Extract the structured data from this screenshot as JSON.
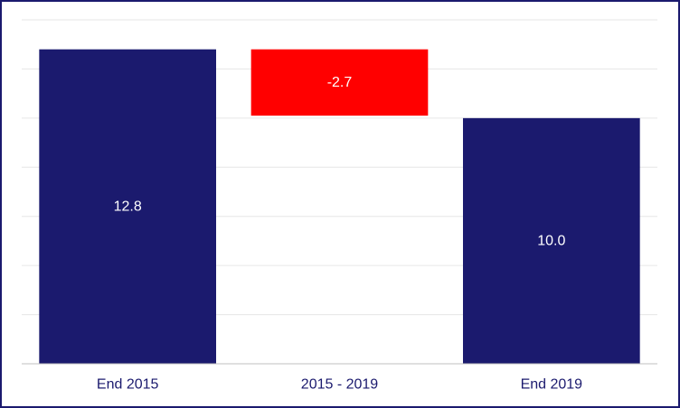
{
  "chart_data": {
    "type": "bar",
    "subtype": "waterfall",
    "title": "",
    "xlabel": "",
    "ylabel": "",
    "categories": [
      "End 2015",
      "2015 - 2019",
      "End 2019"
    ],
    "values": [
      12.8,
      -2.7,
      10.0
    ],
    "value_labels": [
      "12.8",
      "-2.7",
      "10.0"
    ],
    "kinds": [
      "total",
      "delta",
      "total"
    ],
    "ylim": [
      0,
      14
    ],
    "y_tick_step": 2,
    "grid": true,
    "legend": "none",
    "colors": {
      "total": "#1b1a6e",
      "negative": "#ff0000",
      "axis_text": "#1b1a6e",
      "grid": "#e6e6e6",
      "frame": "#1b1a6e"
    }
  }
}
